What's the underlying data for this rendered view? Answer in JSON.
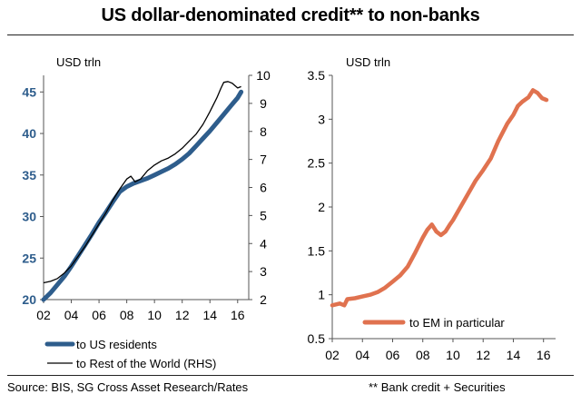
{
  "header": {
    "title": "US dollar-denominated credit** to non-banks"
  },
  "footer": {
    "source": "Source: BIS, SG Cross Asset Research/Rates",
    "note": "** Bank credit + Securities"
  },
  "colors": {
    "us_residents": "#2e5d8c",
    "rest_of_world": "#000000",
    "em": "#e0724f",
    "axis": "#555555",
    "blue_label": "#2e5d8c"
  },
  "chart_data": [
    {
      "type": "line",
      "title": "",
      "unit_label": "USD trln",
      "xlabel": "",
      "x_ticks": [
        "02",
        "04",
        "06",
        "08",
        "10",
        "12",
        "14",
        "16"
      ],
      "xlim": [
        2002,
        2016.8
      ],
      "ylim_left": [
        20,
        47
      ],
      "left_ticks": [
        20,
        25,
        30,
        35,
        40,
        45
      ],
      "ylim_right": [
        2,
        10
      ],
      "right_ticks": [
        2,
        3,
        4,
        5,
        6,
        7,
        8,
        9,
        10
      ],
      "legend_position": "bottom-left",
      "series": [
        {
          "name": "to US residents",
          "axis": "left",
          "x": [
            2002.0,
            2002.5,
            2003.0,
            2003.5,
            2004.0,
            2004.5,
            2005.0,
            2005.5,
            2006.0,
            2006.5,
            2007.0,
            2007.5,
            2008.0,
            2008.5,
            2009.0,
            2009.5,
            2010.0,
            2010.5,
            2011.0,
            2011.5,
            2012.0,
            2012.5,
            2013.0,
            2013.5,
            2014.0,
            2014.5,
            2015.0,
            2015.5,
            2016.0,
            2016.25
          ],
          "values": [
            20.0,
            20.8,
            21.8,
            22.8,
            24.0,
            25.3,
            26.6,
            27.9,
            29.3,
            30.5,
            31.8,
            33.0,
            33.6,
            34.0,
            34.3,
            34.6,
            35.0,
            35.4,
            35.8,
            36.3,
            36.9,
            37.6,
            38.5,
            39.4,
            40.3,
            41.3,
            42.3,
            43.3,
            44.3,
            45.0
          ]
        },
        {
          "name": "to Rest of the World (RHS)",
          "axis": "right",
          "x": [
            2002.0,
            2002.5,
            2003.0,
            2003.5,
            2004.0,
            2004.5,
            2005.0,
            2005.5,
            2006.0,
            2006.5,
            2007.0,
            2007.5,
            2008.0,
            2008.3,
            2008.6,
            2009.0,
            2009.5,
            2010.0,
            2010.5,
            2011.0,
            2011.5,
            2012.0,
            2012.5,
            2013.0,
            2013.5,
            2014.0,
            2014.5,
            2014.8,
            2015.0,
            2015.3,
            2015.6,
            2016.0,
            2016.25
          ],
          "values": [
            2.6,
            2.65,
            2.75,
            2.95,
            3.2,
            3.55,
            3.9,
            4.3,
            4.7,
            5.1,
            5.55,
            5.95,
            6.3,
            6.4,
            6.2,
            6.3,
            6.6,
            6.8,
            6.95,
            7.05,
            7.2,
            7.4,
            7.65,
            7.9,
            8.25,
            8.7,
            9.2,
            9.55,
            9.75,
            9.78,
            9.72,
            9.55,
            9.6
          ]
        }
      ]
    },
    {
      "type": "line",
      "title": "",
      "unit_label": "USD trln",
      "xlabel": "",
      "x_ticks": [
        "02",
        "04",
        "06",
        "08",
        "10",
        "12",
        "14",
        "16"
      ],
      "xlim": [
        2002,
        2016.8
      ],
      "ylim": [
        0.5,
        3.5
      ],
      "y_ticks": [
        "0.5",
        "1",
        "1.5",
        "2",
        "2.5",
        "3",
        "3.5"
      ],
      "legend_position": "bottom-right",
      "series": [
        {
          "name": "to EM in particular",
          "x": [
            2002.0,
            2002.5,
            2002.8,
            2003.0,
            2003.5,
            2004.0,
            2004.5,
            2005.0,
            2005.5,
            2006.0,
            2006.5,
            2007.0,
            2007.5,
            2008.0,
            2008.3,
            2008.6,
            2008.9,
            2009.2,
            2009.5,
            2009.8,
            2010.0,
            2010.5,
            2011.0,
            2011.5,
            2012.0,
            2012.5,
            2013.0,
            2013.3,
            2013.6,
            2014.0,
            2014.3,
            2014.6,
            2015.0,
            2015.3,
            2015.6,
            2015.9,
            2016.2
          ],
          "values": [
            0.88,
            0.9,
            0.88,
            0.95,
            0.96,
            0.98,
            1.0,
            1.03,
            1.08,
            1.15,
            1.22,
            1.32,
            1.48,
            1.65,
            1.74,
            1.8,
            1.72,
            1.68,
            1.72,
            1.8,
            1.85,
            2.0,
            2.15,
            2.3,
            2.42,
            2.55,
            2.75,
            2.85,
            2.95,
            3.05,
            3.15,
            3.2,
            3.25,
            3.33,
            3.3,
            3.24,
            3.22
          ]
        }
      ]
    }
  ]
}
